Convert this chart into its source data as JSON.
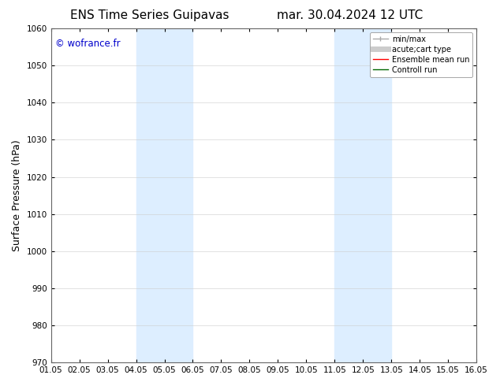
{
  "title_left": "ENS Time Series Guipavas",
  "title_right": "mar. 30.04.2024 12 UTC",
  "ylabel": "Surface Pressure (hPa)",
  "ylim": [
    970,
    1060
  ],
  "yticks": [
    970,
    980,
    990,
    1000,
    1010,
    1020,
    1030,
    1040,
    1050,
    1060
  ],
  "xtick_labels": [
    "01.05",
    "02.05",
    "03.05",
    "04.05",
    "05.05",
    "06.05",
    "07.05",
    "08.05",
    "09.05",
    "10.05",
    "11.05",
    "12.05",
    "13.05",
    "14.05",
    "15.05",
    "16.05"
  ],
  "shaded_regions": [
    {
      "xstart": 3,
      "xend": 5,
      "color": "#ddeeff"
    },
    {
      "xstart": 10,
      "xend": 12,
      "color": "#ddeeff"
    }
  ],
  "watermark": "© wofrance.fr",
  "watermark_color": "#0000cc",
  "legend_entries": [
    {
      "label": "min/max",
      "color": "#aaaaaa",
      "lw": 1.0
    },
    {
      "label": "acute;cart type",
      "color": "#cccccc",
      "lw": 5
    },
    {
      "label": "Ensemble mean run",
      "color": "#ff0000",
      "lw": 1.0
    },
    {
      "label": "Controll run",
      "color": "#006600",
      "lw": 1.0
    }
  ],
  "bg_color": "#ffffff",
  "plot_bg_color": "#ffffff",
  "grid_color": "#cccccc",
  "spine_color": "#666666",
  "title_fontsize": 11,
  "tick_fontsize": 7.5,
  "ylabel_fontsize": 9,
  "legend_fontsize": 7
}
